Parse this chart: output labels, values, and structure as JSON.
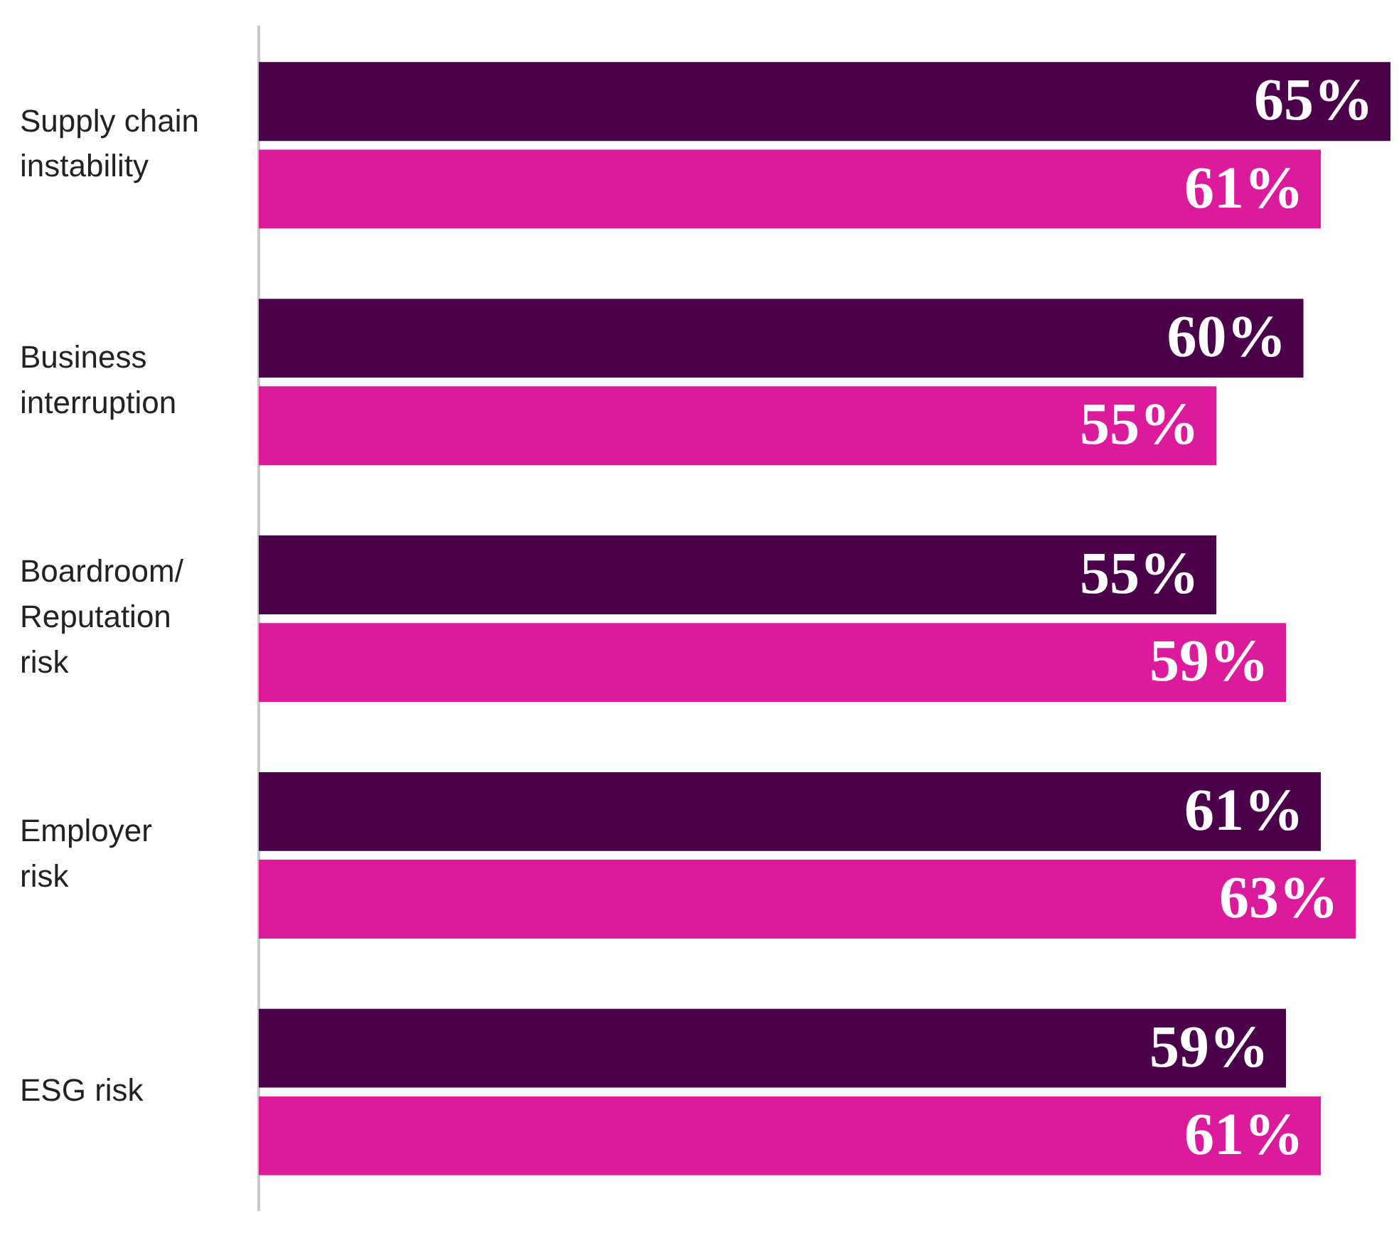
{
  "chart_data": {
    "type": "bar",
    "orientation": "horizontal",
    "categories": [
      "Supply chain instability",
      "Business interruption",
      "Boardroom/ Reputation risk",
      "Employer risk",
      "ESG risk"
    ],
    "series": [
      {
        "color": "#4a004b",
        "values": [
          65,
          60,
          55,
          61,
          59
        ],
        "value_labels": [
          "65%",
          "60%",
          "55%",
          "61%",
          "59%"
        ]
      },
      {
        "color": "#dc1a9c",
        "values": [
          61,
          55,
          59,
          63,
          61
        ],
        "value_labels": [
          "61%",
          "55%",
          "59%",
          "63%",
          "61%"
        ]
      }
    ],
    "grid": false,
    "legend": false,
    "tick_labels": "y"
  }
}
